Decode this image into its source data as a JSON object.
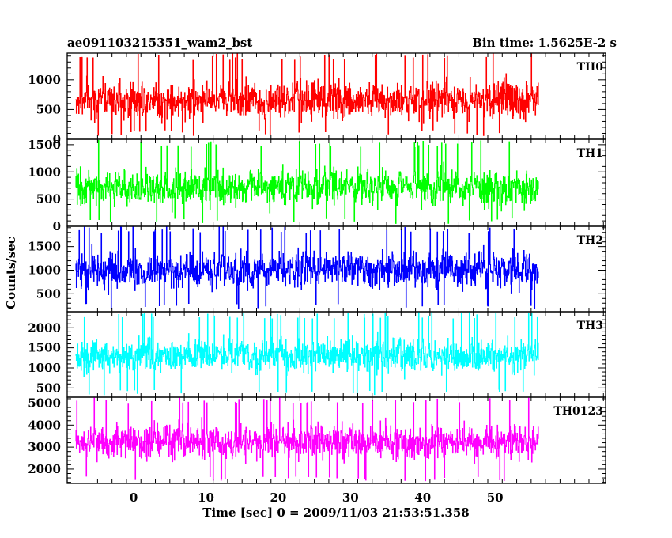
{
  "chart_data": {
    "type": "line",
    "title_left": "ae091103215351_wam2_bst",
    "title_right": "Bin time: 1.5625E-2 s",
    "xlabel": "Time [sec] 0 = 2009/11/03 21:53:51.358",
    "ylabel": "Counts/sec",
    "xlim": [
      -9.2,
      65.3
    ],
    "x_range": [
      -8,
      56
    ],
    "x_ticks": [
      0,
      10,
      20,
      30,
      40,
      50
    ],
    "grid": false,
    "panels": [
      {
        "name": "TH0",
        "color": "#ff0000",
        "ylim": [
          0,
          1450
        ],
        "y_ticks": [
          0,
          500,
          1000
        ],
        "mean": 660,
        "spread": 330,
        "min": 60,
        "max": 1450
      },
      {
        "name": "TH1",
        "color": "#00ff00",
        "ylim": [
          0,
          1600
        ],
        "y_ticks": [
          0,
          500,
          1000,
          1500
        ],
        "mean": 720,
        "spread": 340,
        "min": 50,
        "max": 1580
      },
      {
        "name": "TH2",
        "color": "#0000ff",
        "ylim": [
          120,
          1930
        ],
        "y_ticks": [
          500,
          1000,
          1500
        ],
        "mean": 1000,
        "spread": 400,
        "min": 180,
        "max": 1930
      },
      {
        "name": "TH3",
        "color": "#00ffff",
        "ylim": [
          270,
          2400
        ],
        "y_ticks": [
          500,
          1000,
          1500,
          2000
        ],
        "mean": 1300,
        "spread": 450,
        "min": 330,
        "max": 2400
      },
      {
        "name": "TH0123",
        "color": "#ff00ff",
        "ylim": [
          1350,
          5270
        ],
        "y_ticks": [
          2000,
          3000,
          4000,
          5000
        ],
        "mean": 3250,
        "spread": 800,
        "min": 1450,
        "max": 5270
      }
    ]
  }
}
